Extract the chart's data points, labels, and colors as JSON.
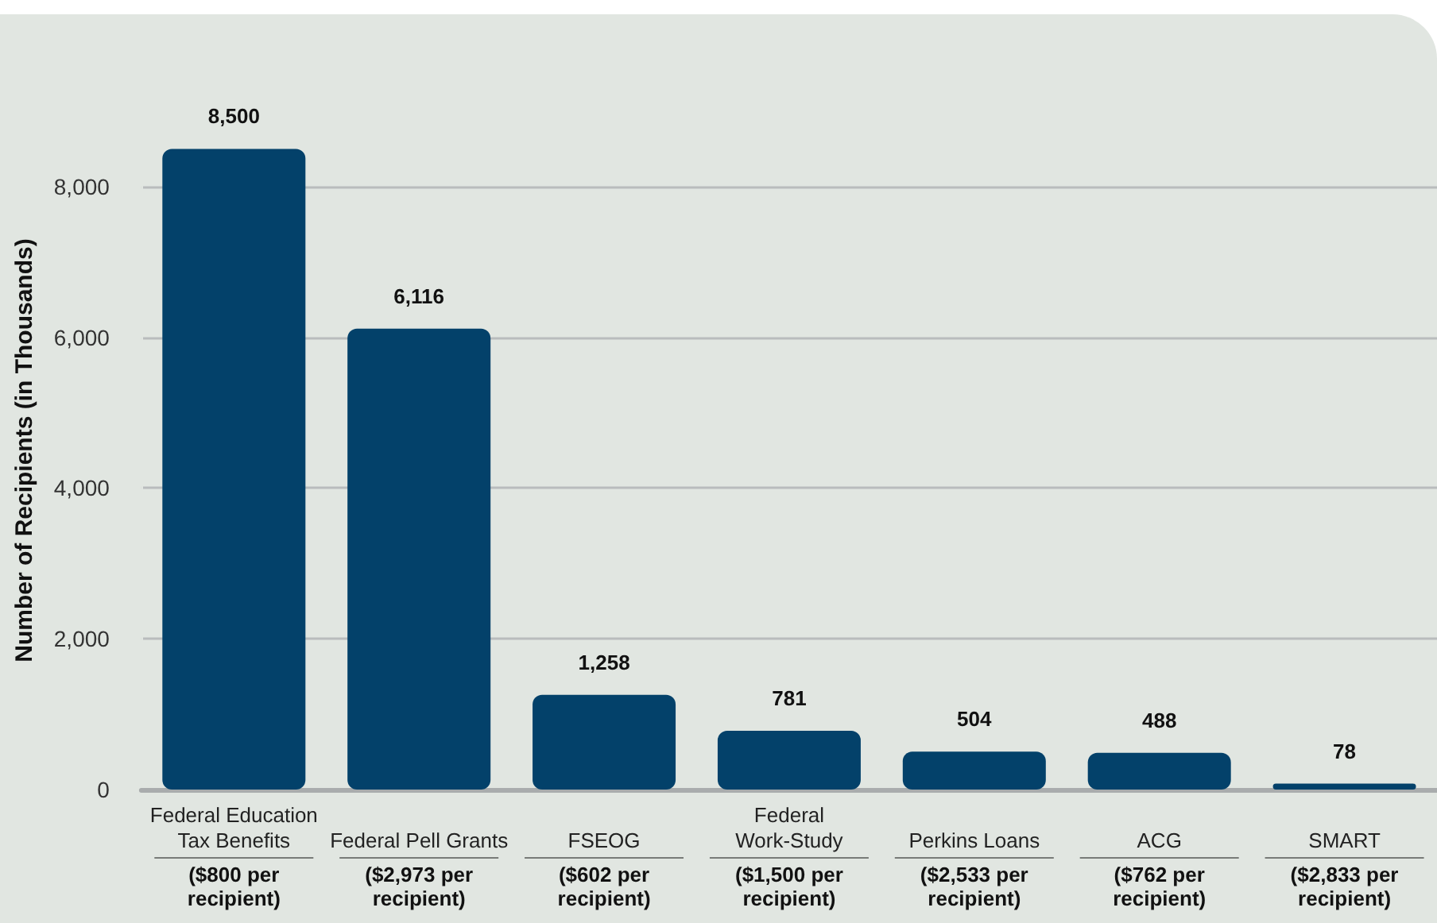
{
  "chart_data": {
    "type": "bar",
    "ylabel": "Number of Recipients (in Thousands)",
    "categories": [
      "Federal Education\nTax Benefits",
      "Federal Pell Grants",
      "FSEOG",
      "Federal\nWork-Study",
      "Perkins Loans",
      "ACG",
      "SMART"
    ],
    "values": [
      8500,
      6116,
      1258,
      781,
      504,
      488,
      78
    ],
    "value_labels": [
      "8,500",
      "6,116",
      "1,258",
      "781",
      "504",
      "488",
      "78"
    ],
    "color": "#03416a",
    "ylim": [
      0,
      9000
    ],
    "yticks": [
      0,
      {
        "value": 2000,
        "label": "2,000"
      },
      {
        "value": 4000,
        "label": "4,000"
      },
      {
        "value": 6000,
        "label": "6,000"
      },
      {
        "value": 8000,
        "label": "8,000"
      }
    ],
    "grid": "y",
    "annotations": [
      "($800 per\nrecipient)",
      "($2,973 per\nrecipient)",
      "($602 per\nrecipient)",
      "($1,500 per\nrecipient)",
      "($2,533 per\nrecipient)",
      "($762 per\nrecipient)",
      "($2,833 per\nrecipient)"
    ]
  }
}
